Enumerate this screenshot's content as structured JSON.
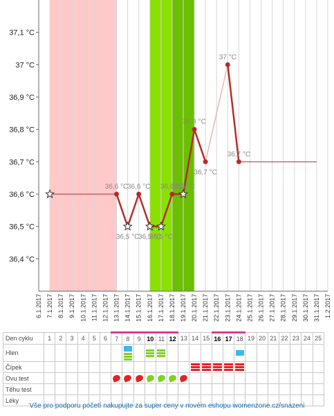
{
  "chart_data": {
    "type": "line",
    "title": "",
    "xlabel": "",
    "ylabel": "",
    "x_dates": [
      "6.1.2017",
      "7.1.2017",
      "8.1.2017",
      "9.1.2017",
      "10.1.2017",
      "11.1.2017",
      "12.1.2017",
      "13.1.2017",
      "14.1.2017",
      "15.1.2017",
      "16.1.2017",
      "17.1.2017",
      "18.1.2017",
      "19.1.2017",
      "20.1.2017",
      "21.1.2017",
      "22.1.2017",
      "23.1.2017",
      "24.1.2017",
      "25.1.2017",
      "26.1.2017",
      "27.1.2017",
      "28.1.2017",
      "29.1.2017",
      "30.1.2017",
      "31.1.2017",
      "1.2.2017"
    ],
    "y_ticks": [
      "36,4 °C",
      "36,5 °C",
      "36,6 °C",
      "36,7 °C",
      "36,8 °C",
      "36,9 °C",
      "37 °C",
      "37,1 °C"
    ],
    "ylim": [
      36.3,
      37.2
    ],
    "grid": "vertical",
    "bands": [
      {
        "name": "menstruation",
        "from": "7.1.2017",
        "to": "12.1.2017",
        "color": "#ffc9c9"
      },
      {
        "name": "fertile",
        "from": "16.1.2017",
        "to": "19.1.2017",
        "color": "#8ae000"
      },
      {
        "name": "fertile-peak",
        "from": "18.1.2017",
        "to": "19.1.2017",
        "color": "#6cbf00"
      }
    ],
    "series": [
      {
        "points": [
          {
            "x": "7.1.2017",
            "y": 36.6,
            "star": true,
            "label": ""
          },
          {
            "x": "13.1.2017",
            "y": 36.6,
            "label": "36,6 °C"
          },
          {
            "x": "14.1.2017",
            "y": 36.5,
            "star": true,
            "label": "36,5 °C"
          },
          {
            "x": "15.1.2017",
            "y": 36.6,
            "label": "36,6 °C"
          },
          {
            "x": "16.1.2017",
            "y": 36.5,
            "star": true,
            "label": "36,5 °C"
          },
          {
            "x": "17.1.2017",
            "y": 36.5,
            "star": true,
            "label": "36,5 °C"
          },
          {
            "x": "18.1.2017",
            "y": 36.6,
            "label": "36,6 °C"
          },
          {
            "x": "19.1.2017",
            "y": 36.6,
            "star": true,
            "label": "36,6 °C"
          },
          {
            "x": "20.1.2017",
            "y": 36.8,
            "label": "36,8 °C"
          },
          {
            "x": "21.1.2017",
            "y": 36.7,
            "label": "36,7 °C"
          },
          {
            "x": "23.1.2017",
            "y": 37.0,
            "label": "37 °C"
          },
          {
            "x": "24.1.2017",
            "y": 36.7,
            "label": "36,7 °C"
          }
        ],
        "dashed_after": "24.1.2017",
        "dashed_to": "31.1.2017",
        "dashed_value": 36.7,
        "color": "#b52c2c"
      }
    ]
  },
  "table": {
    "row_labels": [
      "Den cyklu",
      "Hlen",
      "Čípek",
      "Ovu test",
      "Těhu test",
      "Léky"
    ],
    "days": [
      "1",
      "2",
      "3",
      "4",
      "5",
      "6",
      "7",
      "8",
      "9",
      "10",
      "11",
      "12",
      "13",
      "14",
      "15",
      "16",
      "17",
      "18",
      "19",
      "20",
      "21",
      "22",
      "23",
      "24",
      "25"
    ],
    "highlight_days": [
      "7",
      "8",
      "9",
      "10",
      "11",
      "12",
      "16",
      "17",
      "18"
    ],
    "bold_days": [
      "10",
      "12",
      "16",
      "17"
    ],
    "mucus": {
      "8": "blue+green",
      "10": "green",
      "11": "green",
      "18": "blue"
    },
    "cervix": [
      "14",
      "15",
      "16",
      "17",
      "18"
    ],
    "ovu_test": {
      "7": "#e02424",
      "8": "#e02424",
      "9": "#e02424",
      "10": "#7ed321",
      "11": "#7ed321",
      "12": "#7ed321",
      "13": "#e02424"
    }
  },
  "footer": "Vše pro podporu početí nakupujte za super ceny v novém eshopu womenzone.cz/snazeni"
}
